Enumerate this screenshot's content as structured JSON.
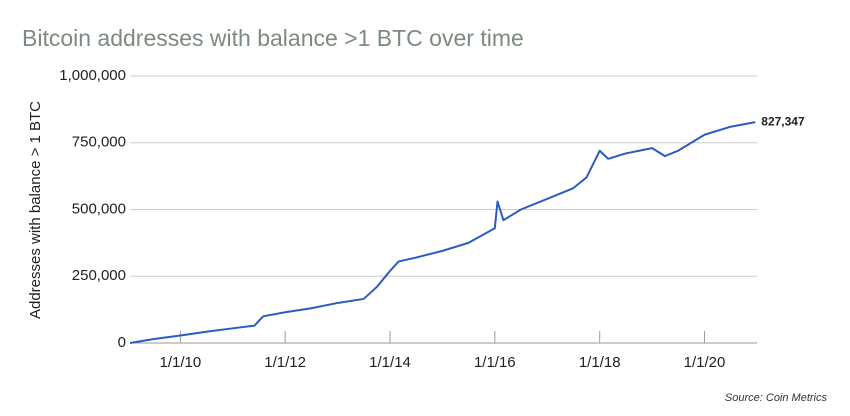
{
  "chart_data": {
    "type": "line",
    "title": "Bitcoin addresses with balance >1 BTC over time",
    "y_label": "Addresses with balance > 1 BTC",
    "source": "Source: Coin Metrics",
    "x": [
      "2009-01-15",
      "2009-07-01",
      "2010-01-01",
      "2010-07-01",
      "2011-01-01",
      "2011-06-01",
      "2011-08-01",
      "2012-01-01",
      "2012-07-01",
      "2013-01-01",
      "2013-07-01",
      "2013-10-01",
      "2014-01-01",
      "2014-03-01",
      "2014-07-01",
      "2015-01-01",
      "2015-07-01",
      "2016-01-01",
      "2016-01-20",
      "2016-03-01",
      "2016-07-01",
      "2017-01-01",
      "2017-07-01",
      "2017-10-01",
      "2018-01-01",
      "2018-03-01",
      "2018-07-01",
      "2019-01-01",
      "2019-04-01",
      "2019-07-01",
      "2020-01-01",
      "2020-07-01",
      "2020-12-20"
    ],
    "series": [
      {
        "name": "Addresses",
        "color": "#2b5cc0",
        "values": [
          0,
          15000,
          28000,
          42000,
          55000,
          65000,
          100000,
          115000,
          130000,
          150000,
          165000,
          210000,
          270000,
          305000,
          320000,
          345000,
          375000,
          430000,
          530000,
          460000,
          500000,
          540000,
          580000,
          620000,
          720000,
          690000,
          710000,
          730000,
          700000,
          720000,
          780000,
          810000,
          827347
        ],
        "value_labels": [
          null,
          null,
          null,
          null,
          null,
          null,
          null,
          null,
          null,
          null,
          null,
          null,
          null,
          null,
          null,
          null,
          null,
          null,
          null,
          null,
          null,
          null,
          null,
          null,
          null,
          null,
          null,
          null,
          null,
          null,
          null,
          null,
          "827,347"
        ]
      }
    ],
    "xlim": [
      "2009-01-15",
      "2021-01-01"
    ],
    "xticks": [
      {
        "value": "2010-01-01",
        "label": "1/1/10"
      },
      {
        "value": "2012-01-01",
        "label": "1/1/12"
      },
      {
        "value": "2014-01-01",
        "label": "1/1/14"
      },
      {
        "value": "2016-01-01",
        "label": "1/1/16"
      },
      {
        "value": "2018-01-01",
        "label": "1/1/18"
      },
      {
        "value": "2020-01-01",
        "label": "1/1/20"
      }
    ],
    "ylim": [
      0,
      1000000
    ],
    "yticks": [
      0,
      {
        "value": 250000,
        "label": "250,000"
      },
      {
        "value": 500000,
        "label": "500,000"
      },
      {
        "value": 750000,
        "label": "750,000"
      },
      {
        "value": 1000000,
        "label": "1,000,000"
      }
    ],
    "grid": true
  }
}
